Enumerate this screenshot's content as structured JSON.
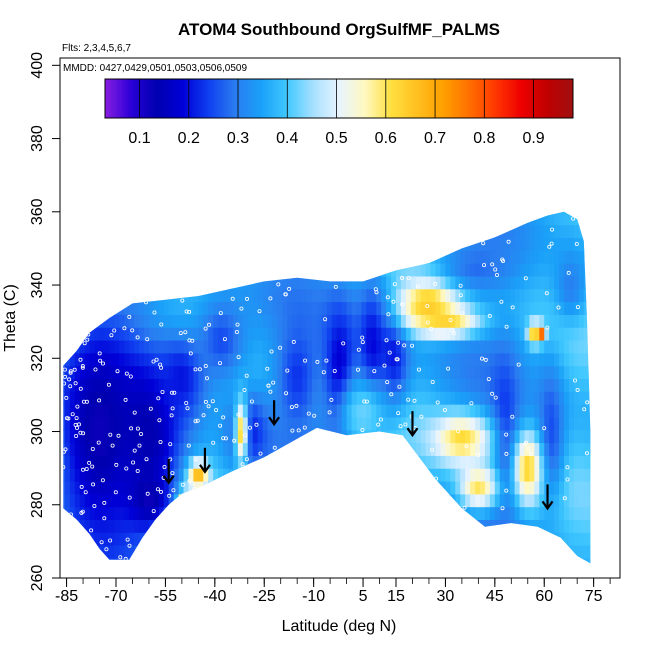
{
  "chart_data": {
    "type": "heatmap",
    "title": "ATOM4 Southbound OrgSulfMF_PALMS",
    "flights_label": "Flts: 2,3,4,5,6,7",
    "dates_label": "MMDD: 0427,0429,0501,0503,0506,0509",
    "xlabel": "Latitude (deg N)",
    "ylabel": "Theta (C)",
    "xlim": [
      -87,
      83
    ],
    "ylim": [
      260,
      402
    ],
    "x_ticks": [
      -85,
      -70,
      -55,
      -40,
      -25,
      -10,
      5,
      15,
      30,
      45,
      60,
      75
    ],
    "x_tick_labels": [
      "-85",
      "-70",
      "-55",
      "-40",
      "-25",
      "-10",
      "5",
      "15",
      "30",
      "45",
      "60",
      "75"
    ],
    "x_minor_step": 5,
    "y_ticks": [
      260,
      280,
      300,
      320,
      340,
      360,
      380,
      400
    ],
    "y_tick_labels": [
      "260",
      "280",
      "300",
      "320",
      "340",
      "360",
      "380",
      "400"
    ],
    "colorbar": {
      "range": [
        0.03,
        0.98
      ],
      "ticks": [
        0.1,
        0.2,
        0.3,
        0.4,
        0.5,
        0.6,
        0.7,
        0.8,
        0.9
      ],
      "tick_labels": [
        "0.1",
        "0.2",
        "0.3",
        "0.4",
        "0.5",
        "0.6",
        "0.7",
        "0.8",
        "0.9"
      ],
      "colors": [
        "#8a1ee0",
        "#2a00d8",
        "#0000b0",
        "#0000d8",
        "#1040f0",
        "#2a7cf0",
        "#1aa0f8",
        "#40c8ff",
        "#a6e0ff",
        "#e8f4ff",
        "#fff8c0",
        "#ffe040",
        "#ffc020",
        "#ffa000",
        "#ff7000",
        "#ff3800",
        "#ee0000",
        "#c00000",
        "#a01010"
      ]
    },
    "domain": {
      "top": [
        [
          -86,
          318
        ],
        [
          -82,
          322
        ],
        [
          -78,
          327
        ],
        [
          -72,
          331
        ],
        [
          -65,
          335
        ],
        [
          -55,
          336
        ],
        [
          -45,
          337
        ],
        [
          -35,
          339
        ],
        [
          -25,
          341
        ],
        [
          -15,
          342
        ],
        [
          -5,
          341
        ],
        [
          5,
          341
        ],
        [
          15,
          344
        ],
        [
          25,
          346
        ],
        [
          35,
          350
        ],
        [
          45,
          353
        ],
        [
          55,
          357
        ],
        [
          61,
          359
        ],
        [
          66,
          360
        ],
        [
          70,
          358
        ],
        [
          72,
          352
        ],
        [
          73,
          330
        ],
        [
          74,
          300
        ]
      ],
      "bottom": [
        [
          -86,
          279
        ],
        [
          -82,
          276
        ],
        [
          -78,
          272
        ],
        [
          -75,
          268
        ],
        [
          -72,
          265
        ],
        [
          -66,
          265
        ],
        [
          -62,
          271
        ],
        [
          -58,
          276
        ],
        [
          -54,
          280
        ],
        [
          -50,
          283
        ],
        [
          -44,
          285
        ],
        [
          -35,
          289
        ],
        [
          -25,
          293
        ],
        [
          -15,
          298
        ],
        [
          -9,
          301
        ],
        [
          0,
          299
        ],
        [
          10,
          300
        ],
        [
          17,
          299
        ],
        [
          22,
          293
        ],
        [
          27,
          287
        ],
        [
          35,
          279
        ],
        [
          42,
          274
        ],
        [
          50,
          275
        ],
        [
          58,
          274
        ],
        [
          65,
          271
        ],
        [
          70,
          266
        ],
        [
          74,
          264
        ]
      ]
    },
    "field": {
      "background": 0.36,
      "blobs": [
        {
          "lat": -75,
          "theta": 300,
          "value": 0.12,
          "width": 14,
          "height": 32
        },
        {
          "lat": -60,
          "theta": 300,
          "value": 0.13,
          "width": 10,
          "height": 20
        },
        {
          "lat": -50,
          "theta": 315,
          "value": 0.2,
          "width": 8,
          "height": 12
        },
        {
          "lat": -38,
          "theta": 325,
          "value": 0.25,
          "width": 8,
          "height": 12
        },
        {
          "lat": -15,
          "theta": 315,
          "value": 0.23,
          "width": 6,
          "height": 14
        },
        {
          "lat": -2,
          "theta": 315,
          "value": 0.16,
          "width": 5,
          "height": 20
        },
        {
          "lat": 8,
          "theta": 322,
          "value": 0.18,
          "width": 5,
          "height": 20
        },
        {
          "lat": 14,
          "theta": 320,
          "value": 0.2,
          "width": 5,
          "height": 14
        },
        {
          "lat": 48,
          "theta": 300,
          "value": 0.22,
          "width": 4,
          "height": 20
        },
        {
          "lat": 62,
          "theta": 300,
          "value": 0.25,
          "width": 4,
          "height": 18
        },
        {
          "lat": -60,
          "theta": 282,
          "value": 0.12,
          "width": 6,
          "height": 8
        },
        {
          "lat": -30,
          "theta": 300,
          "value": 0.2,
          "width": 6,
          "height": 10
        },
        {
          "lat": 25,
          "theta": 335,
          "value": 0.66,
          "width": 9,
          "height": 6
        },
        {
          "lat": 30,
          "theta": 330,
          "value": 0.63,
          "width": 10,
          "height": 4
        },
        {
          "lat": 35,
          "theta": 298,
          "value": 0.62,
          "width": 9,
          "height": 7
        },
        {
          "lat": 40,
          "theta": 285,
          "value": 0.6,
          "width": 6,
          "height": 6
        },
        {
          "lat": 55,
          "theta": 290,
          "value": 0.63,
          "width": 4,
          "height": 9
        },
        {
          "lat": -45,
          "theta": 288,
          "value": 0.68,
          "width": 3,
          "height": 4
        },
        {
          "lat": -32,
          "theta": 300,
          "value": 0.62,
          "width": 2,
          "height": 9
        },
        {
          "lat": 59,
          "theta": 327,
          "value": 0.85,
          "width": 1.2,
          "height": 2
        },
        {
          "lat": 57,
          "theta": 327,
          "value": 0.65,
          "width": 2,
          "height": 3
        },
        {
          "lat": -49,
          "theta": 282,
          "value": 0.75,
          "width": 2,
          "height": 2
        },
        {
          "lat": 5,
          "theta": 305,
          "value": 0.42,
          "width": 8,
          "height": 10
        },
        {
          "lat": 40,
          "theta": 345,
          "value": 0.28,
          "width": 10,
          "height": 6
        },
        {
          "lat": 68,
          "theta": 340,
          "value": 0.3,
          "width": 5,
          "height": 10
        }
      ]
    },
    "arrows": [
      {
        "lat": -54,
        "theta": 286
      },
      {
        "lat": -43,
        "theta": 289
      },
      {
        "lat": -22,
        "theta": 302
      },
      {
        "lat": 20,
        "theta": 299
      },
      {
        "lat": 61,
        "theta": 279
      }
    ]
  }
}
